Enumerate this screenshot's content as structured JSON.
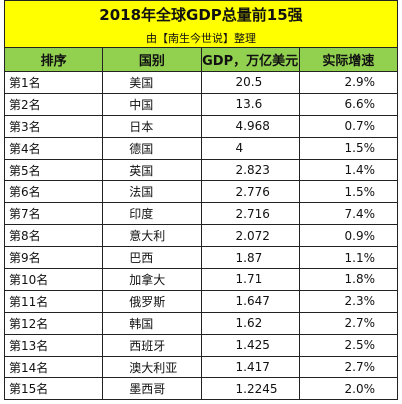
{
  "title": "2018年全球GDP总量前15强",
  "subtitle": "由【南生今世说】整理",
  "headers": {
    "rank": "排序",
    "country": "国别",
    "gdp": "GDP，万亿美元",
    "growth": "实际增速"
  },
  "rows": [
    {
      "rank": "第1名",
      "country": "美国",
      "gdp": "20.5",
      "growth": "2.9%"
    },
    {
      "rank": "第2名",
      "country": "中国",
      "gdp": "13.6",
      "growth": "6.6%"
    },
    {
      "rank": "第3名",
      "country": "日本",
      "gdp": "4.968",
      "growth": "0.7%"
    },
    {
      "rank": "第4名",
      "country": "德国",
      "gdp": "4",
      "growth": "1.5%"
    },
    {
      "rank": "第5名",
      "country": "英国",
      "gdp": "2.823",
      "growth": "1.4%"
    },
    {
      "rank": "第6名",
      "country": "法国",
      "gdp": "2.776",
      "growth": "1.5%"
    },
    {
      "rank": "第7名",
      "country": "印度",
      "gdp": "2.716",
      "growth": "7.4%"
    },
    {
      "rank": "第8名",
      "country": "意大利",
      "gdp": "2.072",
      "growth": "0.9%"
    },
    {
      "rank": "第9名",
      "country": "巴西",
      "gdp": "1.87",
      "growth": "1.1%"
    },
    {
      "rank": "第10名",
      "country": "加拿大",
      "gdp": "1.71",
      "growth": "1.8%"
    },
    {
      "rank": "第11名",
      "country": "俄罗斯",
      "gdp": "1.647",
      "growth": "2.3%"
    },
    {
      "rank": "第12名",
      "country": "韩国",
      "gdp": "1.62",
      "growth": "2.7%"
    },
    {
      "rank": "第13名",
      "country": "西班牙",
      "gdp": "1.425",
      "growth": "2.5%"
    },
    {
      "rank": "第14名",
      "country": "澳大利亚",
      "gdp": "1.417",
      "growth": "2.7%"
    },
    {
      "rank": "第15名",
      "country": "墨西哥",
      "gdp": "1.2245",
      "growth": "2.0%"
    }
  ],
  "colors": {
    "title_bg": "#ffff00",
    "header_bg": "#92d050"
  }
}
